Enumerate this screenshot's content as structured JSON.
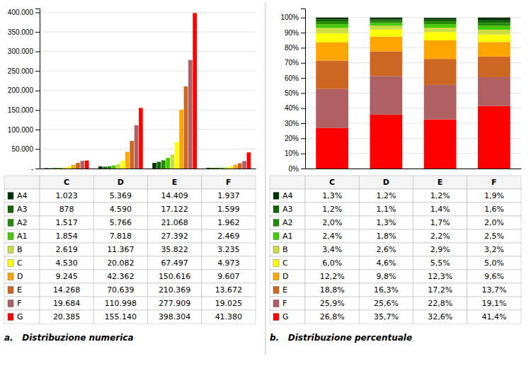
{
  "chart_data": [
    {
      "type": "bar",
      "title": "a.   Distribuzione numerica",
      "categories": [
        "C",
        "D",
        "E",
        "F"
      ],
      "series": [
        {
          "name": "A4",
          "color": "#003300",
          "values": [
            1023,
            5369,
            14409,
            1937
          ],
          "value_labels": [
            "1.023",
            "5.369",
            "14.409",
            "1.937"
          ]
        },
        {
          "name": "A3",
          "color": "#116600",
          "values": [
            878,
            4590,
            17122,
            1599
          ],
          "value_labels": [
            "878",
            "4.590",
            "17.122",
            "1.599"
          ]
        },
        {
          "name": "A2",
          "color": "#228B00",
          "values": [
            1517,
            5766,
            21068,
            1962
          ],
          "value_labels": [
            "1.517",
            "5.766",
            "21.068",
            "1.962"
          ]
        },
        {
          "name": "A1",
          "color": "#44CC00",
          "values": [
            1854,
            7818,
            27392,
            2469
          ],
          "value_labels": [
            "1.854",
            "7.818",
            "27.392",
            "2.469"
          ]
        },
        {
          "name": "B",
          "color": "#CCDD44",
          "values": [
            2619,
            11367,
            35822,
            3235
          ],
          "value_labels": [
            "2.619",
            "11.367",
            "35.822",
            "3.235"
          ]
        },
        {
          "name": "C",
          "color": "#FFFF00",
          "values": [
            4530,
            20082,
            67497,
            4973
          ],
          "value_labels": [
            "4.530",
            "20.082",
            "67.497",
            "4.973"
          ]
        },
        {
          "name": "D",
          "color": "#FFA500",
          "values": [
            9245,
            42362,
            150616,
            9607
          ],
          "value_labels": [
            "9.245",
            "42.362",
            "150.616",
            "9.607"
          ]
        },
        {
          "name": "E",
          "color": "#CC6622",
          "values": [
            14268,
            70639,
            210369,
            13672
          ],
          "value_labels": [
            "14.268",
            "70.639",
            "210.369",
            "13.672"
          ]
        },
        {
          "name": "F",
          "color": "#B06060",
          "values": [
            19684,
            110998,
            277909,
            19025
          ],
          "value_labels": [
            "19.684",
            "110.998",
            "277.909",
            "19.025"
          ]
        },
        {
          "name": "G",
          "color": "#FF0000",
          "values": [
            20385,
            155140,
            398304,
            41380
          ],
          "value_labels": [
            "20.385",
            "155.140",
            "398.304",
            "41.380"
          ]
        }
      ],
      "ylim": [
        0,
        410000
      ],
      "yticks": [
        {
          "value": 0,
          "label": "-"
        },
        {
          "value": 50000,
          "label": "50.000"
        },
        {
          "value": 100000,
          "label": "100.000"
        },
        {
          "value": 150000,
          "label": "150.000"
        },
        {
          "value": 200000,
          "label": "200.000"
        },
        {
          "value": 250000,
          "label": "250.000"
        },
        {
          "value": 300000,
          "label": "300.000"
        },
        {
          "value": 350000,
          "label": "350.000"
        },
        {
          "value": 400000,
          "label": "400.000"
        }
      ],
      "grid": true,
      "tick_labels": "y"
    },
    {
      "type": "bar",
      "title": "b.   Distribuzione percentuale",
      "categories": [
        "C",
        "D",
        "E",
        "F"
      ],
      "stacked": true,
      "series": [
        {
          "name": "G",
          "color": "#FF0000",
          "values": [
            26.8,
            35.7,
            32.6,
            41.4
          ],
          "value_labels": [
            "26,8%",
            "35,7%",
            "32,6%",
            "41,4%"
          ]
        },
        {
          "name": "F",
          "color": "#B06060",
          "values": [
            25.9,
            25.6,
            22.8,
            19.1
          ],
          "value_labels": [
            "25,9%",
            "25,6%",
            "22,8%",
            "19,1%"
          ]
        },
        {
          "name": "E",
          "color": "#CC6622",
          "values": [
            18.8,
            16.3,
            17.2,
            13.7
          ],
          "value_labels": [
            "18,8%",
            "16,3%",
            "17,2%",
            "13,7%"
          ]
        },
        {
          "name": "D",
          "color": "#FFA500",
          "values": [
            12.2,
            9.8,
            12.3,
            9.6
          ],
          "value_labels": [
            "12,2%",
            "9,8%",
            "12,3%",
            "9,6%"
          ]
        },
        {
          "name": "C",
          "color": "#FFFF00",
          "values": [
            6.0,
            4.6,
            5.5,
            5.0
          ],
          "value_labels": [
            "6,0%",
            "4,6%",
            "5,5%",
            "5,0%"
          ]
        },
        {
          "name": "B",
          "color": "#CCDD44",
          "values": [
            3.4,
            2.6,
            2.9,
            3.2
          ],
          "value_labels": [
            "3,4%",
            "2,6%",
            "2,9%",
            "3,2%"
          ]
        },
        {
          "name": "A1",
          "color": "#44CC00",
          "values": [
            2.4,
            1.8,
            2.2,
            2.5
          ],
          "value_labels": [
            "2,4%",
            "1,8%",
            "2,2%",
            "2,5%"
          ]
        },
        {
          "name": "A2",
          "color": "#228B00",
          "values": [
            2.0,
            1.3,
            1.7,
            2.0
          ],
          "value_labels": [
            "2,0%",
            "1,3%",
            "1,7%",
            "2,0%"
          ]
        },
        {
          "name": "A3",
          "color": "#116600",
          "values": [
            1.2,
            1.1,
            1.4,
            1.6
          ],
          "value_labels": [
            "1,2%",
            "1,1%",
            "1,4%",
            "1,6%"
          ]
        },
        {
          "name": "A4",
          "color": "#003300",
          "values": [
            1.3,
            1.2,
            1.2,
            1.9
          ],
          "value_labels": [
            "1,3%",
            "1,2%",
            "1,2%",
            "1,9%"
          ]
        }
      ],
      "ylim": [
        0,
        106
      ],
      "yticks": [
        {
          "value": 0,
          "label": "0%"
        },
        {
          "value": 10,
          "label": "10%"
        },
        {
          "value": 20,
          "label": "20%"
        },
        {
          "value": 30,
          "label": "30%"
        },
        {
          "value": 40,
          "label": "40%"
        },
        {
          "value": 50,
          "label": "50%"
        },
        {
          "value": 60,
          "label": "60%"
        },
        {
          "value": 70,
          "label": "70%"
        },
        {
          "value": 80,
          "label": "80%"
        },
        {
          "value": 90,
          "label": "90%"
        },
        {
          "value": 100,
          "label": "100%"
        }
      ],
      "grid": true,
      "tick_labels": "y"
    }
  ]
}
